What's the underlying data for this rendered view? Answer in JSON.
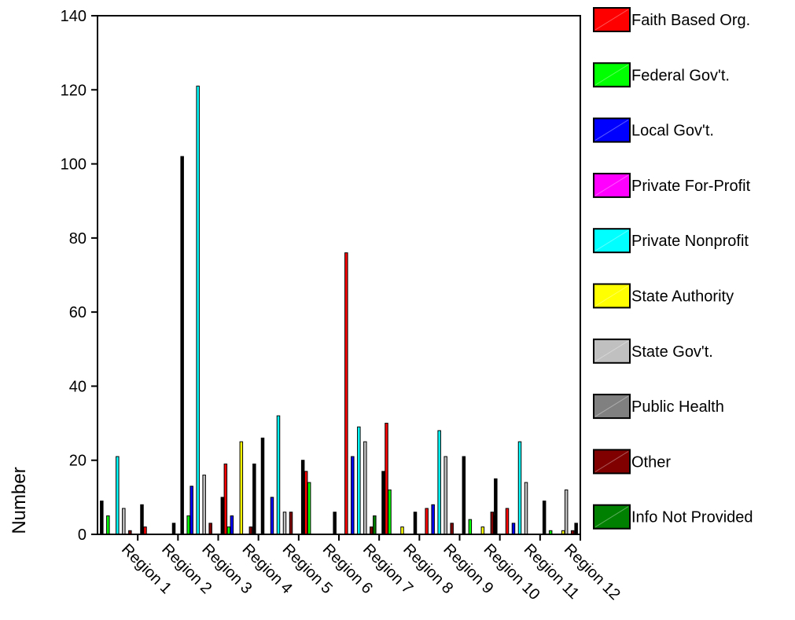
{
  "chart_data": {
    "type": "bar",
    "title": "",
    "xlabel": "",
    "ylabel": "Number",
    "ylim": [
      0,
      140
    ],
    "yticks": [
      0,
      20,
      40,
      60,
      80,
      100,
      120,
      140
    ],
    "grid": false,
    "legend_position": "right",
    "categories": [
      "Region 1",
      "Region 2",
      "Region 3",
      "Region 4",
      "Region 5",
      "Region 6",
      "Region 7",
      "Region 8",
      "Region 9",
      "Region 10",
      "Region 11",
      "Region 12"
    ],
    "series": [
      {
        "name": "Faith Based Org.",
        "color": "#ff0000",
        "values": [
          0,
          2,
          0,
          19,
          0,
          17,
          76,
          30,
          7,
          0,
          7,
          0
        ]
      },
      {
        "name": "Federal Gov't.",
        "color": "#00ff00",
        "values": [
          5,
          0,
          5,
          2,
          0,
          14,
          0,
          12,
          0,
          4,
          0,
          1
        ]
      },
      {
        "name": "Local Gov't.",
        "color": "#0000ff",
        "values": [
          0,
          0,
          13,
          5,
          10,
          0,
          21,
          0,
          8,
          0,
          3,
          0
        ]
      },
      {
        "name": "Private For-Profit",
        "color": "#ff00ff",
        "values": [
          0,
          0,
          0,
          0,
          0,
          0,
          0,
          0,
          0,
          0,
          0,
          0
        ]
      },
      {
        "name": "Private Nonprofit",
        "color": "#00ffff",
        "values": [
          21,
          0,
          121,
          0,
          32,
          0,
          29,
          0,
          28,
          0,
          25,
          0
        ]
      },
      {
        "name": "State Authority",
        "color": "#ffff00",
        "values": [
          0,
          0,
          0,
          25,
          0,
          0,
          0,
          2,
          0,
          2,
          0,
          1
        ]
      },
      {
        "name": "State Gov't.",
        "color": "#c0c0c0",
        "values": [
          7,
          0,
          16,
          0,
          6,
          0,
          25,
          0,
          21,
          0,
          14,
          12
        ]
      },
      {
        "name": "Public Health",
        "color": "#808080",
        "values": [
          0,
          0,
          0,
          0,
          0,
          0,
          0,
          0,
          0,
          0,
          0,
          0
        ]
      },
      {
        "name": "Other",
        "color": "#800000",
        "values": [
          1,
          0,
          3,
          2,
          6,
          0,
          2,
          0,
          3,
          6,
          0,
          1
        ]
      },
      {
        "name": "Info Not Provided",
        "color": "#008000",
        "values": [
          0,
          0,
          0,
          0,
          0,
          0,
          5,
          0,
          0,
          5,
          0,
          0
        ]
      }
    ],
    "unlabeled_series": {
      "color": "#000000",
      "values": [
        9,
        8,
        102,
        10,
        26,
        20,
        0,
        17,
        0,
        21,
        0,
        9
      ],
      "secondary_values": [
        0,
        3,
        0,
        19,
        0,
        6,
        0,
        6,
        0,
        15,
        0,
        3
      ]
    }
  }
}
